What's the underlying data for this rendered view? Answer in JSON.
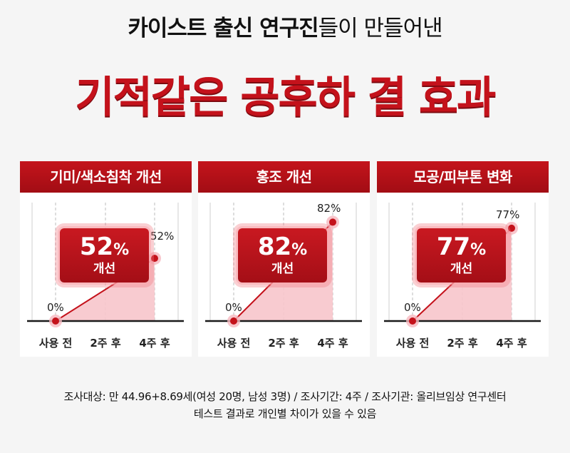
{
  "headline": {
    "bold_part": "카이스트 출신 연구진",
    "regular_part": "들이 만들어낸"
  },
  "hero": "기적같은 공후하 결 효과",
  "cards": [
    {
      "title": "기미/색소침착 개선",
      "percent_number": "52",
      "percent_sign": "%",
      "improve_label": "개선",
      "start_label": "0%",
      "end_label": "52%",
      "x_labels": [
        "사용 전",
        "2주 후",
        "4주 후"
      ],
      "value_fraction": 0.52
    },
    {
      "title": "홍조 개선",
      "percent_number": "82",
      "percent_sign": "%",
      "improve_label": "개선",
      "start_label": "0%",
      "end_label": "82%",
      "x_labels": [
        "사용 전",
        "2주 후",
        "4주 후"
      ],
      "value_fraction": 0.82
    },
    {
      "title": "모공/피부톤 변화",
      "percent_number": "77",
      "percent_sign": "%",
      "improve_label": "개선",
      "start_label": "0%",
      "end_label": "77%",
      "x_labels": [
        "사용 전",
        "2주 후",
        "4주 후"
      ],
      "value_fraction": 0.77
    }
  ],
  "footer": {
    "line1": "조사대상: 만 44.96+8.69세(여성 20명, 남성 3명) / 조사기간: 4주 / 조사기관:  올리브임상 연구센터",
    "line2": "테스트 결과로 개인별 차이가 있을 수 있음"
  },
  "colors": {
    "accent": "#c4121b",
    "accent_dark": "#a20d14",
    "fill_pink": "#f7c5cb"
  }
}
